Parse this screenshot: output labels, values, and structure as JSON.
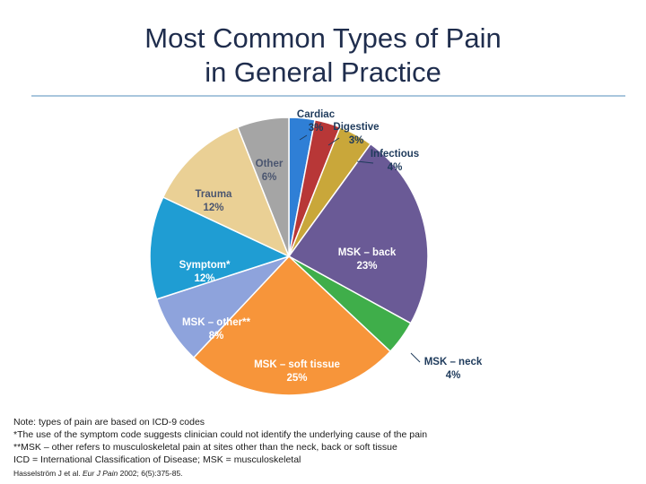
{
  "slide": {
    "title_line1": "Most Common Types of Pain",
    "title_line2": "in General Practice"
  },
  "chart_data": {
    "type": "pie",
    "title": "",
    "slices": [
      {
        "label": "Cardiac",
        "value": 3,
        "value_label": "3%",
        "color": "#2f7fd6"
      },
      {
        "label": "Digestive",
        "value": 3,
        "value_label": "3%",
        "color": "#b83737"
      },
      {
        "label": "Infectious",
        "value": 4,
        "value_label": "4%",
        "color": "#c9a73a"
      },
      {
        "label": "MSK – back",
        "value": 23,
        "value_label": "23%",
        "color": "#6a5a96"
      },
      {
        "label": "MSK – neck",
        "value": 4,
        "value_label": "4%",
        "color": "#3fae4a"
      },
      {
        "label": "MSK – soft tissue",
        "value": 25,
        "value_label": "25%",
        "color": "#f7953a"
      },
      {
        "label": "MSK – other**",
        "value": 8,
        "value_label": "8%",
        "color": "#8ea3dc"
      },
      {
        "label": "Symptom*",
        "value": 12,
        "value_label": "12%",
        "color": "#1f9dd3"
      },
      {
        "label": "Trauma",
        "value": 12,
        "value_label": "12%",
        "color": "#ead095"
      },
      {
        "label": "Other",
        "value": 6,
        "value_label": "6%",
        "color": "#a5a5a5"
      }
    ]
  },
  "notes": {
    "line1": "Note: types of pain are based on ICD-9 codes",
    "line2": "*The use of the symptom code suggests clinician could not identify the underlying cause of the pain",
    "line3": "**MSK – other refers to musculoskeletal pain at sites other than the neck, back or soft tissue",
    "line4": "ICD = International Classification of Disease; MSK = musculoskeletal",
    "citation_authors": "Hasselström J et al.",
    "citation_journal": "Eur J Pain",
    "citation_rest": "2002; 6(5):375-85."
  }
}
